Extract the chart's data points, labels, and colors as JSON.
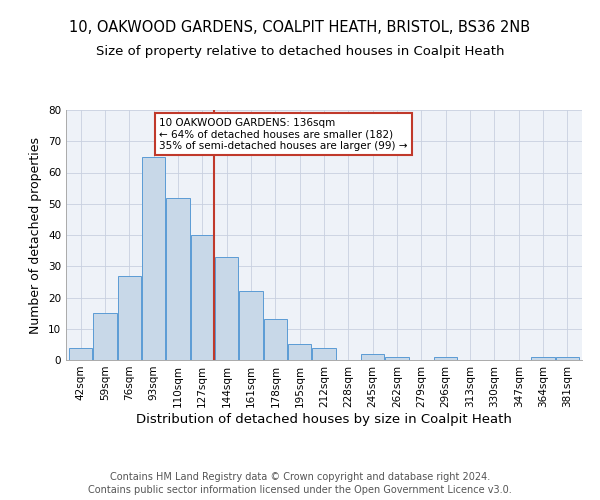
{
  "title_line1": "10, OAKWOOD GARDENS, COALPIT HEATH, BRISTOL, BS36 2NB",
  "title_line2": "Size of property relative to detached houses in Coalpit Heath",
  "xlabel": "Distribution of detached houses by size in Coalpit Heath",
  "ylabel": "Number of detached properties",
  "bar_labels": [
    "42sqm",
    "59sqm",
    "76sqm",
    "93sqm",
    "110sqm",
    "127sqm",
    "144sqm",
    "161sqm",
    "178sqm",
    "195sqm",
    "212sqm",
    "228sqm",
    "245sqm",
    "262sqm",
    "279sqm",
    "296sqm",
    "313sqm",
    "330sqm",
    "347sqm",
    "364sqm",
    "381sqm"
  ],
  "bar_values": [
    4,
    15,
    27,
    65,
    52,
    40,
    33,
    22,
    13,
    5,
    4,
    0,
    2,
    1,
    0,
    1,
    0,
    0,
    0,
    1,
    1
  ],
  "bar_color": "#c8d8e8",
  "bar_edge_color": "#5b9bd5",
  "vline_x": 5.5,
  "vline_color": "#c0392b",
  "annotation_text": "10 OAKWOOD GARDENS: 136sqm\n← 64% of detached houses are smaller (182)\n35% of semi-detached houses are larger (99) →",
  "annotation_box_color": "#c0392b",
  "ylim": [
    0,
    80
  ],
  "yticks": [
    0,
    10,
    20,
    30,
    40,
    50,
    60,
    70,
    80
  ],
  "grid_color": "#c8d0e0",
  "background_color": "#eef2f8",
  "footer_line1": "Contains HM Land Registry data © Crown copyright and database right 2024.",
  "footer_line2": "Contains public sector information licensed under the Open Government Licence v3.0.",
  "title_fontsize": 10.5,
  "subtitle_fontsize": 9.5,
  "axis_label_fontsize": 9,
  "tick_fontsize": 7.5,
  "annotation_fontsize": 7.5,
  "footer_fontsize": 7.0
}
